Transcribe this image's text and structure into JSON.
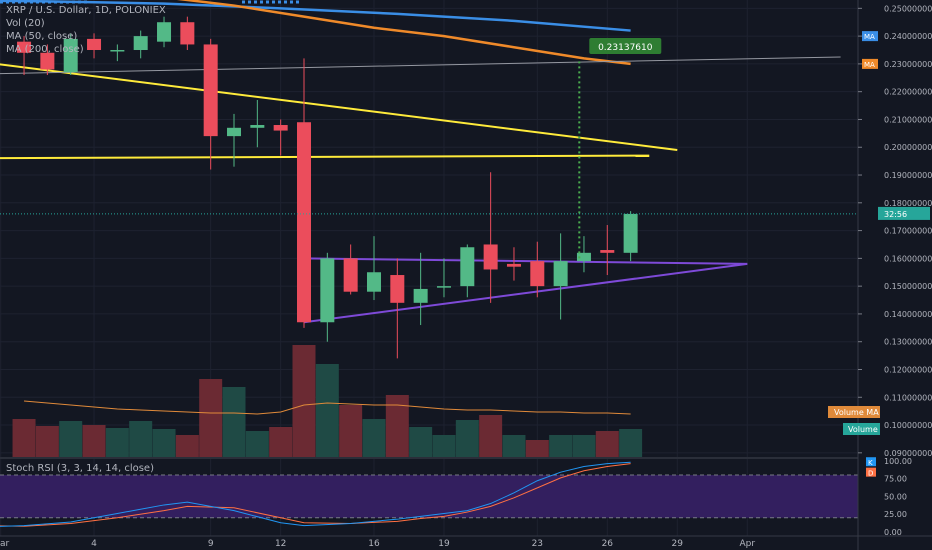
{
  "legend": {
    "symbol_line": "XRP / U.S. Dollar, 1D, POLONIEX",
    "vol_line": "Vol (20)",
    "ma50_line": "MA (50, close)",
    "ma200_line": "MA (200, close)",
    "stoch_line": "Stoch RSI (3, 3, 14, 14, close)"
  },
  "chart_data": {
    "type": "candlestick",
    "price_axis": {
      "ticks": [
        "0.25000000",
        "0.24000000",
        "0.23000000",
        "0.22000000",
        "0.21000000",
        "0.20000000",
        "0.19000000",
        "0.18000000",
        "0.17000000",
        "0.16000000",
        "0.15000000",
        "0.14000000",
        "0.13000000",
        "0.12000000",
        "0.11000000",
        "0.10000000",
        "0.09000000"
      ],
      "ylim": [
        0.0885,
        0.253
      ]
    },
    "x_axis": {
      "ticks": [
        {
          "label": "Mar",
          "day": -2
        },
        {
          "label": "4",
          "day": 2
        },
        {
          "label": "9",
          "day": 7
        },
        {
          "label": "12",
          "day": 10
        },
        {
          "label": "16",
          "day": 14
        },
        {
          "label": "19",
          "day": 17
        },
        {
          "label": "23",
          "day": 21
        },
        {
          "label": "26",
          "day": 24
        },
        {
          "label": "29",
          "day": 27
        },
        {
          "label": "Apr",
          "day": 30
        }
      ]
    },
    "candles": [
      {
        "day": -1,
        "o": 0.238,
        "h": 0.24,
        "l": 0.226,
        "c": 0.234
      },
      {
        "day": 0,
        "o": 0.234,
        "h": 0.237,
        "l": 0.226,
        "c": 0.228
      },
      {
        "day": 1,
        "o": 0.227,
        "h": 0.241,
        "l": 0.226,
        "c": 0.239
      },
      {
        "day": 2,
        "o": 0.239,
        "h": 0.241,
        "l": 0.232,
        "c": 0.235
      },
      {
        "day": 3,
        "o": 0.235,
        "h": 0.237,
        "l": 0.231,
        "c": 0.235
      },
      {
        "day": 4,
        "o": 0.235,
        "h": 0.242,
        "l": 0.232,
        "c": 0.24
      },
      {
        "day": 5,
        "o": 0.238,
        "h": 0.247,
        "l": 0.236,
        "c": 0.245
      },
      {
        "day": 6,
        "o": 0.245,
        "h": 0.247,
        "l": 0.235,
        "c": 0.237
      },
      {
        "day": 7,
        "o": 0.237,
        "h": 0.239,
        "l": 0.192,
        "c": 0.204
      },
      {
        "day": 8,
        "o": 0.204,
        "h": 0.212,
        "l": 0.193,
        "c": 0.207
      },
      {
        "day": 9,
        "o": 0.207,
        "h": 0.217,
        "l": 0.2,
        "c": 0.208
      },
      {
        "day": 10,
        "o": 0.208,
        "h": 0.21,
        "l": 0.197,
        "c": 0.206
      },
      {
        "day": 11,
        "o": 0.209,
        "h": 0.232,
        "l": 0.135,
        "c": 0.137
      },
      {
        "day": 12,
        "o": 0.137,
        "h": 0.162,
        "l": 0.13,
        "c": 0.16
      },
      {
        "day": 13,
        "o": 0.16,
        "h": 0.165,
        "l": 0.147,
        "c": 0.148
      },
      {
        "day": 14,
        "o": 0.148,
        "h": 0.168,
        "l": 0.145,
        "c": 0.155
      },
      {
        "day": 15,
        "o": 0.154,
        "h": 0.16,
        "l": 0.124,
        "c": 0.144
      },
      {
        "day": 16,
        "o": 0.144,
        "h": 0.162,
        "l": 0.136,
        "c": 0.149
      },
      {
        "day": 17,
        "o": 0.15,
        "h": 0.16,
        "l": 0.146,
        "c": 0.15
      },
      {
        "day": 18,
        "o": 0.15,
        "h": 0.165,
        "l": 0.146,
        "c": 0.164
      },
      {
        "day": 19,
        "o": 0.165,
        "h": 0.191,
        "l": 0.144,
        "c": 0.156
      },
      {
        "day": 20,
        "o": 0.158,
        "h": 0.164,
        "l": 0.152,
        "c": 0.157
      },
      {
        "day": 21,
        "o": 0.159,
        "h": 0.166,
        "l": 0.146,
        "c": 0.15
      },
      {
        "day": 22,
        "o": 0.15,
        "h": 0.169,
        "l": 0.138,
        "c": 0.159
      },
      {
        "day": 23,
        "o": 0.159,
        "h": 0.168,
        "l": 0.155,
        "c": 0.162
      },
      {
        "day": 24,
        "o": 0.163,
        "h": 0.172,
        "l": 0.154,
        "c": 0.162
      },
      {
        "day": 25,
        "o": 0.162,
        "h": 0.177,
        "l": 0.159,
        "c": 0.176
      }
    ],
    "volume": {
      "series_name": "Volume MA",
      "bars": [
        {
          "day": -1,
          "v": 38,
          "up": false
        },
        {
          "day": 0,
          "v": 31,
          "up": false
        },
        {
          "day": 1,
          "v": 36,
          "up": true
        },
        {
          "day": 2,
          "v": 32,
          "up": false
        },
        {
          "day": 3,
          "v": 29,
          "up": true
        },
        {
          "day": 4,
          "v": 36,
          "up": true
        },
        {
          "day": 5,
          "v": 28,
          "up": true
        },
        {
          "day": 6,
          "v": 22,
          "up": false
        },
        {
          "day": 7,
          "v": 78,
          "up": false
        },
        {
          "day": 8,
          "v": 70,
          "up": true
        },
        {
          "day": 9,
          "v": 26,
          "up": true
        },
        {
          "day": 10,
          "v": 30,
          "up": false
        },
        {
          "day": 11,
          "v": 112,
          "up": false
        },
        {
          "day": 12,
          "v": 93,
          "up": true
        },
        {
          "day": 13,
          "v": 52,
          "up": false
        },
        {
          "day": 14,
          "v": 38,
          "up": true
        },
        {
          "day": 15,
          "v": 62,
          "up": false
        },
        {
          "day": 16,
          "v": 30,
          "up": true
        },
        {
          "day": 17,
          "v": 22,
          "up": true
        },
        {
          "day": 18,
          "v": 37,
          "up": true
        },
        {
          "day": 19,
          "v": 42,
          "up": false
        },
        {
          "day": 20,
          "v": 22,
          "up": true
        },
        {
          "day": 21,
          "v": 17,
          "up": false
        },
        {
          "day": 22,
          "v": 22,
          "up": true
        },
        {
          "day": 23,
          "v": 22,
          "up": true
        },
        {
          "day": 24,
          "v": 26,
          "up": false
        },
        {
          "day": 25,
          "v": 28,
          "up": true
        }
      ],
      "ma": [
        56,
        54,
        52,
        50,
        48,
        47,
        46,
        45,
        44,
        44,
        43,
        45,
        52,
        54,
        53,
        52,
        52,
        50,
        48,
        47,
        47,
        46,
        45,
        45,
        44,
        44,
        43
      ],
      "labels": {
        "vma": "Volume MA",
        "volume": "Volume"
      }
    },
    "ma50": {
      "label": "MA",
      "points": [
        [
          -5,
          0.259
        ],
        [
          0,
          0.257
        ],
        [
          5,
          0.254
        ],
        [
          8,
          0.251
        ],
        [
          11,
          0.247
        ],
        [
          14,
          0.243
        ],
        [
          17,
          0.24
        ],
        [
          20,
          0.236
        ],
        [
          23,
          0.232
        ],
        [
          25,
          0.23
        ]
      ],
      "color": "#ef8a2a"
    },
    "ma200": {
      "label": "MA",
      "points": [
        [
          -5,
          0.253
        ],
        [
          0,
          0.2525
        ],
        [
          5,
          0.2517
        ],
        [
          10,
          0.25
        ],
        [
          15,
          0.248
        ],
        [
          20,
          0.2455
        ],
        [
          25,
          0.242
        ]
      ],
      "color": "#3a8ee6"
    },
    "trendlines": [
      {
        "name": "yellow-descending",
        "color": "#ffeb3b",
        "from": [
          -5,
          0.233
        ],
        "to": [
          27,
          0.199
        ]
      },
      {
        "name": "yellow-flat",
        "color": "#ffeb3b",
        "from": [
          -5,
          0.196
        ],
        "to": [
          25.8,
          0.197
        ]
      },
      {
        "name": "gray-horizontal",
        "color": "#9598a1",
        "from": [
          -5,
          0.226
        ],
        "to": [
          34,
          0.2325
        ]
      },
      {
        "name": "triangle-top",
        "color": "#7e4ad8",
        "from": [
          11,
          0.16
        ],
        "to": [
          30,
          0.158
        ]
      },
      {
        "name": "triangle-bottom",
        "color": "#7e4ad8",
        "from": [
          11,
          0.137
        ],
        "to": [
          30,
          0.158
        ]
      }
    ],
    "target": {
      "value": "0.23137610",
      "day": 22.8,
      "from_price": 0.16,
      "to_price": 0.2314
    },
    "last_price": {
      "price": 0.176,
      "countdown": "32:56"
    },
    "stoch": {
      "ticks": [
        "100.00",
        "75.00",
        "50.00",
        "25.00",
        "0.00"
      ],
      "k": [
        [
          -5,
          10
        ],
        [
          -3,
          7
        ],
        [
          -1,
          9
        ],
        [
          1,
          14
        ],
        [
          3,
          26
        ],
        [
          5,
          38
        ],
        [
          6,
          42
        ],
        [
          8,
          30
        ],
        [
          10,
          13
        ],
        [
          11,
          9
        ],
        [
          13,
          12
        ],
        [
          15,
          18
        ],
        [
          16,
          22
        ],
        [
          17,
          26
        ],
        [
          18,
          30
        ],
        [
          19,
          40
        ],
        [
          20,
          55
        ],
        [
          21,
          72
        ],
        [
          22,
          84
        ],
        [
          23,
          92
        ],
        [
          24,
          96
        ],
        [
          25,
          98
        ]
      ],
      "d": [
        [
          -5,
          12
        ],
        [
          -3,
          9
        ],
        [
          -1,
          8
        ],
        [
          1,
          12
        ],
        [
          3,
          20
        ],
        [
          5,
          30
        ],
        [
          6,
          36
        ],
        [
          8,
          34
        ],
        [
          10,
          20
        ],
        [
          11,
          13
        ],
        [
          13,
          12
        ],
        [
          15,
          15
        ],
        [
          16,
          19
        ],
        [
          17,
          22
        ],
        [
          18,
          28
        ],
        [
          19,
          36
        ],
        [
          20,
          48
        ],
        [
          21,
          62
        ],
        [
          22,
          76
        ],
        [
          23,
          86
        ],
        [
          24,
          92
        ],
        [
          25,
          96
        ]
      ],
      "badges": {
        "k": "K",
        "d": "D"
      }
    },
    "colors": {
      "up": "#26a69a",
      "down": "#ef5350",
      "up_body": "#53b987",
      "down_body": "#eb4d5c",
      "background": "#131722",
      "grid": "#1e2230",
      "text": "#b2b5be"
    }
  }
}
